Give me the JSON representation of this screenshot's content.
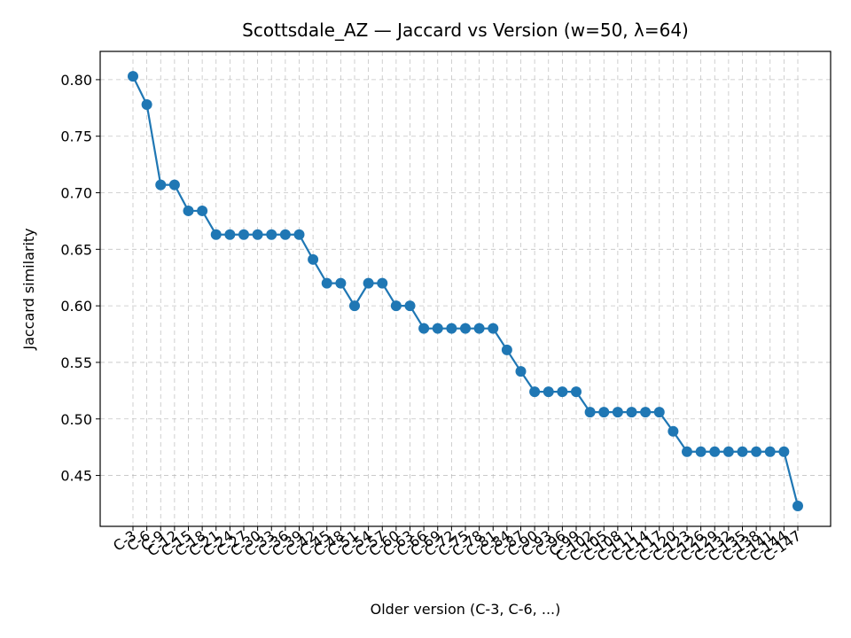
{
  "chart_data": {
    "type": "line",
    "title": "Scottsdale_AZ — Jaccard vs Version (w=50, λ=64)",
    "xlabel": "Older version (C-3, C-6, ...)",
    "ylabel": "Jaccard similarity",
    "ylim": [
      0.405,
      0.825
    ],
    "yticks": [
      0.45,
      0.5,
      0.55,
      0.6,
      0.65,
      0.7,
      0.75,
      0.8
    ],
    "ytick_labels": [
      "0.45",
      "0.50",
      "0.55",
      "0.60",
      "0.65",
      "0.70",
      "0.75",
      "0.80"
    ],
    "grid": true,
    "marker": "circle",
    "color": "#1f77b4",
    "categories": [
      "C-3",
      "C-6",
      "C-9",
      "C-12",
      "C-15",
      "C-18",
      "C-21",
      "C-24",
      "C-27",
      "C-30",
      "C-33",
      "C-36",
      "C-39",
      "C-42",
      "C-45",
      "C-48",
      "C-51",
      "C-54",
      "C-57",
      "C-60",
      "C-63",
      "C-66",
      "C-69",
      "C-72",
      "C-75",
      "C-78",
      "C-81",
      "C-84",
      "C-87",
      "C-90",
      "C-93",
      "C-96",
      "C-99",
      "C-102",
      "C-105",
      "C-108",
      "C-111",
      "C-114",
      "C-117",
      "C-120",
      "C-123",
      "C-126",
      "C-129",
      "C-132",
      "C-135",
      "C-138",
      "C-141",
      "C-144",
      "C-147"
    ],
    "values": [
      0.803,
      0.778,
      0.707,
      0.707,
      0.684,
      0.684,
      0.663,
      0.663,
      0.663,
      0.663,
      0.663,
      0.663,
      0.663,
      0.641,
      0.62,
      0.62,
      0.6,
      0.62,
      0.62,
      0.6,
      0.6,
      0.58,
      0.58,
      0.58,
      0.58,
      0.58,
      0.58,
      0.561,
      0.542,
      0.524,
      0.524,
      0.524,
      0.524,
      0.506,
      0.506,
      0.506,
      0.506,
      0.506,
      0.506,
      0.489,
      0.471,
      0.471,
      0.471,
      0.471,
      0.471,
      0.471,
      0.471,
      0.471,
      0.423
    ]
  }
}
